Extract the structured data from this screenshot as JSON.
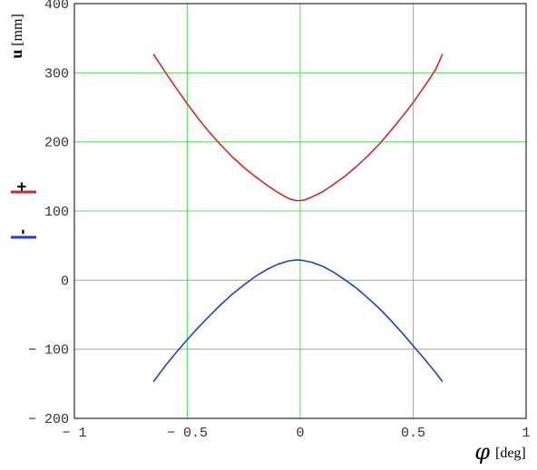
{
  "chart_data": {
    "type": "line",
    "xlabel": "[deg]",
    "xlabel_symbol": "φ",
    "ylabel_bold": "u",
    "ylabel_unit": "[mm]",
    "xlim": [
      -1,
      1
    ],
    "ylim": [
      -200,
      400
    ],
    "x_ticks": [
      -1,
      -0.5,
      0,
      0.5,
      1
    ],
    "x_tick_labels": [
      "− 1",
      "− 0.5",
      "0",
      "0.5",
      "1"
    ],
    "y_ticks": [
      -200,
      -100,
      0,
      100,
      200,
      300,
      400
    ],
    "y_tick_labels": [
      "− 200",
      "− 100",
      "0",
      "100",
      "200",
      "300",
      "400"
    ],
    "grid": true,
    "grid_color": "#5fdc5f",
    "legend_position": "left",
    "series": [
      {
        "name": "+",
        "color": "#d62728",
        "points": [
          [
            -0.65,
            327
          ],
          [
            -0.6,
            302
          ],
          [
            -0.55,
            278
          ],
          [
            -0.5,
            255
          ],
          [
            -0.45,
            233
          ],
          [
            -0.4,
            213
          ],
          [
            -0.35,
            195
          ],
          [
            -0.3,
            178
          ],
          [
            -0.25,
            163
          ],
          [
            -0.2,
            150
          ],
          [
            -0.15,
            138
          ],
          [
            -0.1,
            127
          ],
          [
            -0.05,
            118
          ],
          [
            -0.02,
            115
          ],
          [
            0,
            115
          ],
          [
            0.02,
            116
          ],
          [
            0.05,
            120
          ],
          [
            0.1,
            128
          ],
          [
            0.15,
            139
          ],
          [
            0.2,
            151
          ],
          [
            0.25,
            165
          ],
          [
            0.3,
            180
          ],
          [
            0.35,
            197
          ],
          [
            0.4,
            216
          ],
          [
            0.45,
            236
          ],
          [
            0.5,
            257
          ],
          [
            0.55,
            280
          ],
          [
            0.6,
            305
          ],
          [
            0.63,
            327
          ]
        ]
      },
      {
        "name": "-",
        "color": "#1f3fd0",
        "points": [
          [
            -0.65,
            -147
          ],
          [
            -0.6,
            -125
          ],
          [
            -0.55,
            -105
          ],
          [
            -0.5,
            -86
          ],
          [
            -0.45,
            -68
          ],
          [
            -0.4,
            -51
          ],
          [
            -0.35,
            -35
          ],
          [
            -0.3,
            -20
          ],
          [
            -0.25,
            -7
          ],
          [
            -0.2,
            5
          ],
          [
            -0.15,
            15
          ],
          [
            -0.1,
            23
          ],
          [
            -0.05,
            28
          ],
          [
            -0.02,
            29
          ],
          [
            0,
            29
          ],
          [
            0.02,
            28
          ],
          [
            0.05,
            26
          ],
          [
            0.1,
            20
          ],
          [
            0.15,
            11
          ],
          [
            0.2,
            0
          ],
          [
            0.25,
            -12
          ],
          [
            0.3,
            -26
          ],
          [
            0.35,
            -41
          ],
          [
            0.4,
            -58
          ],
          [
            0.45,
            -76
          ],
          [
            0.5,
            -95
          ],
          [
            0.55,
            -114
          ],
          [
            0.6,
            -134
          ],
          [
            0.63,
            -147
          ]
        ]
      }
    ]
  }
}
